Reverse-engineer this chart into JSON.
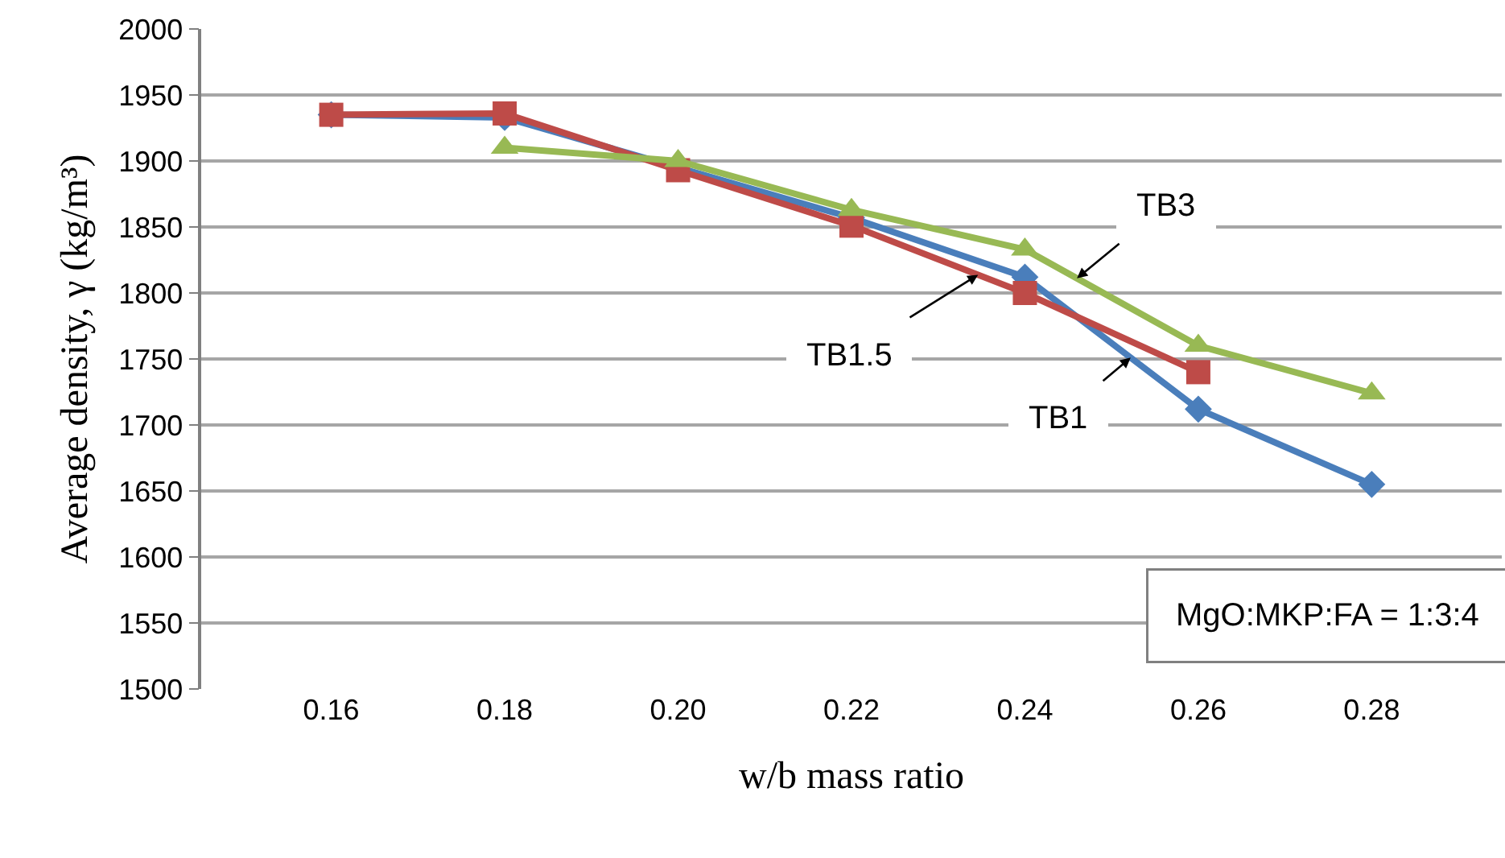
{
  "chart_data": {
    "type": "line",
    "xlabel": "w/b mass ratio",
    "ylabel": "Average density, γ (kg/m³)",
    "x": [
      0.16,
      0.18,
      0.2,
      0.22,
      0.24,
      0.26,
      0.28
    ],
    "xlim": [
      0.145,
      0.295
    ],
    "xticks": [
      {
        "value": 0.16,
        "label": "0.16"
      },
      {
        "value": 0.18,
        "label": "0.18"
      },
      {
        "value": 0.2,
        "label": "0.20"
      },
      {
        "value": 0.22,
        "label": "0.22"
      },
      {
        "value": 0.24,
        "label": "0.24"
      },
      {
        "value": 0.26,
        "label": "0.26"
      },
      {
        "value": 0.28,
        "label": "0.28"
      }
    ],
    "ylim": [
      1500,
      2000
    ],
    "yticks": [
      1500,
      1550,
      1600,
      1650,
      1700,
      1750,
      1800,
      1850,
      1900,
      1950,
      2000
    ],
    "grid": "y",
    "legend": false,
    "series": [
      {
        "name": "TB1",
        "color": "#4a7ebb",
        "marker": "diamond",
        "values": [
          1935,
          1933,
          null,
          1857,
          1812,
          1712,
          1655
        ]
      },
      {
        "name": "TB1.5",
        "color": "#be4b48",
        "marker": "square",
        "values": [
          1935,
          1936,
          1893,
          1851,
          1800,
          1740,
          null
        ]
      },
      {
        "name": "TB3",
        "color": "#98b954",
        "marker": "triangle",
        "values": [
          null,
          1910,
          1900,
          1863,
          1833,
          1760,
          1724
        ]
      }
    ],
    "annotations": [
      "MgO:MKP:FA = 1:3:4"
    ]
  }
}
